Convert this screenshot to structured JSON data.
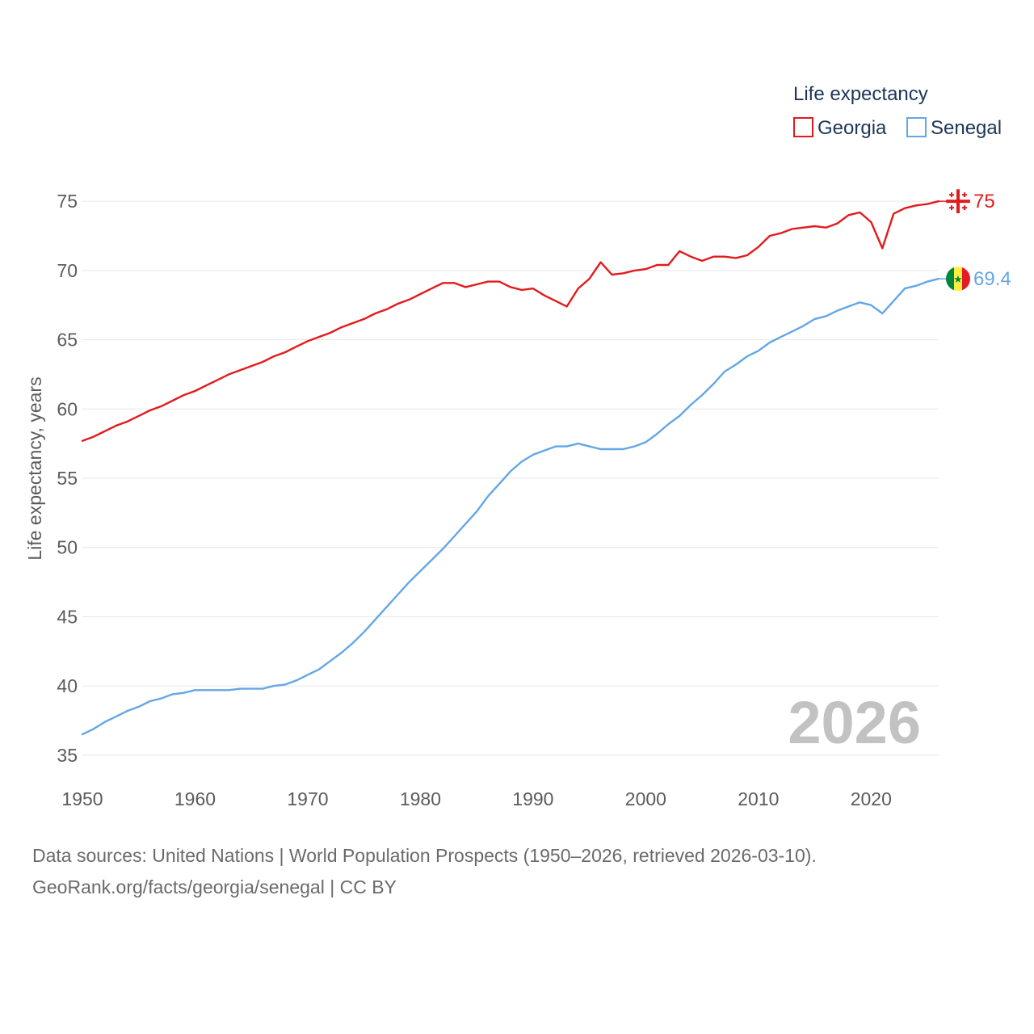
{
  "chart_data": {
    "type": "line",
    "ylabel": "Life expectancy, years",
    "xlim": [
      1950,
      2026
    ],
    "ylim": [
      34,
      76
    ],
    "yticks": [
      35,
      40,
      45,
      50,
      55,
      60,
      65,
      70,
      75
    ],
    "xticks": [
      1950,
      1960,
      1970,
      1980,
      1990,
      2000,
      2010,
      2020
    ],
    "grid": true,
    "legend": {
      "title": "Life expectancy",
      "position": "top-right"
    },
    "year_label": "2026",
    "series": [
      {
        "name": "Georgia",
        "color": "#e31a1c",
        "end_label": "75",
        "flag": "georgia-flag",
        "x": [
          1950,
          1951,
          1952,
          1953,
          1954,
          1955,
          1956,
          1957,
          1958,
          1959,
          1960,
          1961,
          1962,
          1963,
          1964,
          1965,
          1966,
          1967,
          1968,
          1969,
          1970,
          1971,
          1972,
          1973,
          1974,
          1975,
          1976,
          1977,
          1978,
          1979,
          1980,
          1981,
          1982,
          1983,
          1984,
          1985,
          1986,
          1987,
          1988,
          1989,
          1990,
          1991,
          1992,
          1993,
          1994,
          1995,
          1996,
          1997,
          1998,
          1999,
          2000,
          2001,
          2002,
          2003,
          2004,
          2005,
          2006,
          2007,
          2008,
          2009,
          2010,
          2011,
          2012,
          2013,
          2014,
          2015,
          2016,
          2017,
          2018,
          2019,
          2020,
          2021,
          2022,
          2023,
          2024,
          2025,
          2026
        ],
        "values": [
          57.7,
          58.0,
          58.4,
          58.8,
          59.1,
          59.5,
          59.9,
          60.2,
          60.6,
          61.0,
          61.3,
          61.7,
          62.1,
          62.5,
          62.8,
          63.1,
          63.4,
          63.8,
          64.1,
          64.5,
          64.9,
          65.2,
          65.5,
          65.9,
          66.2,
          66.5,
          66.9,
          67.2,
          67.6,
          67.9,
          68.3,
          68.7,
          69.1,
          69.1,
          68.8,
          69.0,
          69.2,
          69.2,
          68.8,
          68.6,
          68.7,
          68.2,
          67.8,
          67.4,
          68.7,
          69.4,
          70.6,
          69.7,
          69.8,
          70.0,
          70.1,
          70.4,
          70.4,
          71.4,
          71.0,
          70.7,
          71.0,
          71.0,
          70.9,
          71.1,
          71.7,
          72.5,
          72.7,
          73.0,
          73.1,
          73.2,
          73.1,
          73.4,
          74.0,
          74.2,
          73.5,
          71.6,
          74.1,
          74.5,
          74.7,
          74.8,
          75.0
        ]
      },
      {
        "name": "Senegal",
        "color": "#64a6e6",
        "end_label": "69.4",
        "flag": "senegal-flag",
        "x": [
          1950,
          1951,
          1952,
          1953,
          1954,
          1955,
          1956,
          1957,
          1958,
          1959,
          1960,
          1961,
          1962,
          1963,
          1964,
          1965,
          1966,
          1967,
          1968,
          1969,
          1970,
          1971,
          1972,
          1973,
          1974,
          1975,
          1976,
          1977,
          1978,
          1979,
          1980,
          1981,
          1982,
          1983,
          1984,
          1985,
          1986,
          1987,
          1988,
          1989,
          1990,
          1991,
          1992,
          1993,
          1994,
          1995,
          1996,
          1997,
          1998,
          1999,
          2000,
          2001,
          2002,
          2003,
          2004,
          2005,
          2006,
          2007,
          2008,
          2009,
          2010,
          2011,
          2012,
          2013,
          2014,
          2015,
          2016,
          2017,
          2018,
          2019,
          2020,
          2021,
          2022,
          2023,
          2024,
          2025,
          2026
        ],
        "values": [
          36.5,
          36.9,
          37.4,
          37.8,
          38.2,
          38.5,
          38.9,
          39.1,
          39.4,
          39.5,
          39.7,
          39.7,
          39.7,
          39.7,
          39.8,
          39.8,
          39.8,
          40.0,
          40.1,
          40.4,
          40.8,
          41.2,
          41.8,
          42.4,
          43.1,
          43.9,
          44.8,
          45.7,
          46.6,
          47.5,
          48.3,
          49.1,
          49.9,
          50.8,
          51.7,
          52.6,
          53.7,
          54.6,
          55.5,
          56.2,
          56.7,
          57.0,
          57.3,
          57.3,
          57.5,
          57.3,
          57.1,
          57.1,
          57.1,
          57.3,
          57.6,
          58.2,
          58.9,
          59.5,
          60.3,
          61.0,
          61.8,
          62.7,
          63.2,
          63.8,
          64.2,
          64.8,
          65.2,
          65.6,
          66.0,
          66.5,
          66.7,
          67.1,
          67.4,
          67.7,
          67.5,
          66.9,
          67.8,
          68.7,
          68.9,
          69.2,
          69.4
        ]
      }
    ]
  },
  "footer": {
    "source_line": "Data sources: United Nations | World Population Prospects (1950–2026, retrieved 2026-03-10).",
    "credit_line": "GeoRank.org/facts/georgia/senegal | CC BY"
  }
}
